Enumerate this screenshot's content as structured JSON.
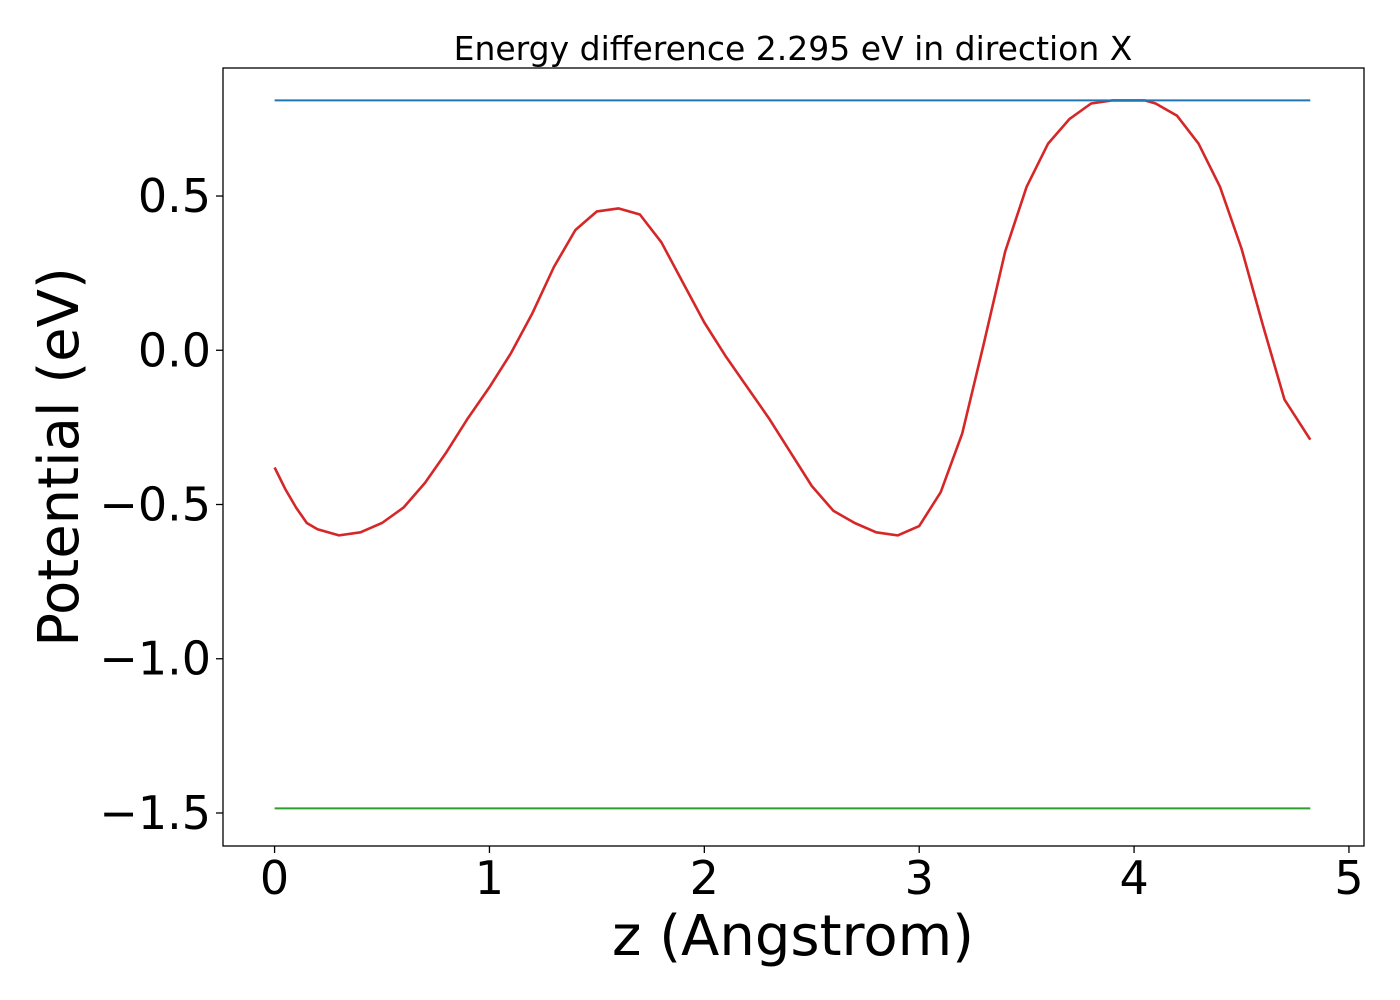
{
  "chart_data": {
    "type": "line",
    "title": "Energy difference 2.295 eV in direction X",
    "xlabel": "z (Angstrom)",
    "ylabel": "Potential (eV)",
    "xlim": [
      -0.24,
      5.07
    ],
    "ylim": [
      -1.607,
      0.915
    ],
    "xticks": [
      0,
      1,
      2,
      3,
      4,
      5
    ],
    "xtick_labels": [
      "0",
      "1",
      "2",
      "3",
      "4",
      "5"
    ],
    "yticks": [
      -1.5,
      -1.0,
      -0.5,
      0.0,
      0.5
    ],
    "ytick_labels": [
      "−1.5",
      "−1.0",
      "−0.5",
      "0.0",
      "0.5"
    ],
    "grid": false,
    "legend": "none",
    "series": [
      {
        "color": "#d62728",
        "x": [
          0.0,
          0.05,
          0.1,
          0.15,
          0.2,
          0.3,
          0.4,
          0.5,
          0.6,
          0.7,
          0.8,
          0.9,
          1.0,
          1.1,
          1.2,
          1.3,
          1.4,
          1.5,
          1.6,
          1.7,
          1.8,
          1.9,
          2.0,
          2.1,
          2.2,
          2.3,
          2.4,
          2.5,
          2.6,
          2.7,
          2.8,
          2.9,
          3.0,
          3.1,
          3.2,
          3.3,
          3.4,
          3.5,
          3.6,
          3.7,
          3.8,
          3.9,
          4.0,
          4.05,
          4.1,
          4.2,
          4.3,
          4.4,
          4.5,
          4.6,
          4.7,
          4.82
        ],
        "y": [
          -0.38,
          -0.45,
          -0.51,
          -0.56,
          -0.58,
          -0.6,
          -0.59,
          -0.56,
          -0.51,
          -0.43,
          -0.33,
          -0.22,
          -0.12,
          -0.01,
          0.12,
          0.27,
          0.39,
          0.45,
          0.46,
          0.44,
          0.35,
          0.22,
          0.09,
          -0.02,
          -0.12,
          -0.22,
          -0.33,
          -0.44,
          -0.52,
          -0.56,
          -0.59,
          -0.6,
          -0.57,
          -0.46,
          -0.27,
          0.02,
          0.32,
          0.53,
          0.67,
          0.75,
          0.8,
          0.81,
          0.81,
          0.81,
          0.8,
          0.76,
          0.67,
          0.53,
          0.33,
          0.08,
          -0.16,
          -0.29
        ]
      },
      {
        "color": "#1f77b4",
        "x": [
          0.0,
          4.82
        ],
        "y": [
          0.81,
          0.81
        ]
      },
      {
        "color": "#2ca02c",
        "x": [
          0.0,
          4.82
        ],
        "y": [
          -1.485,
          -1.485
        ]
      }
    ]
  }
}
